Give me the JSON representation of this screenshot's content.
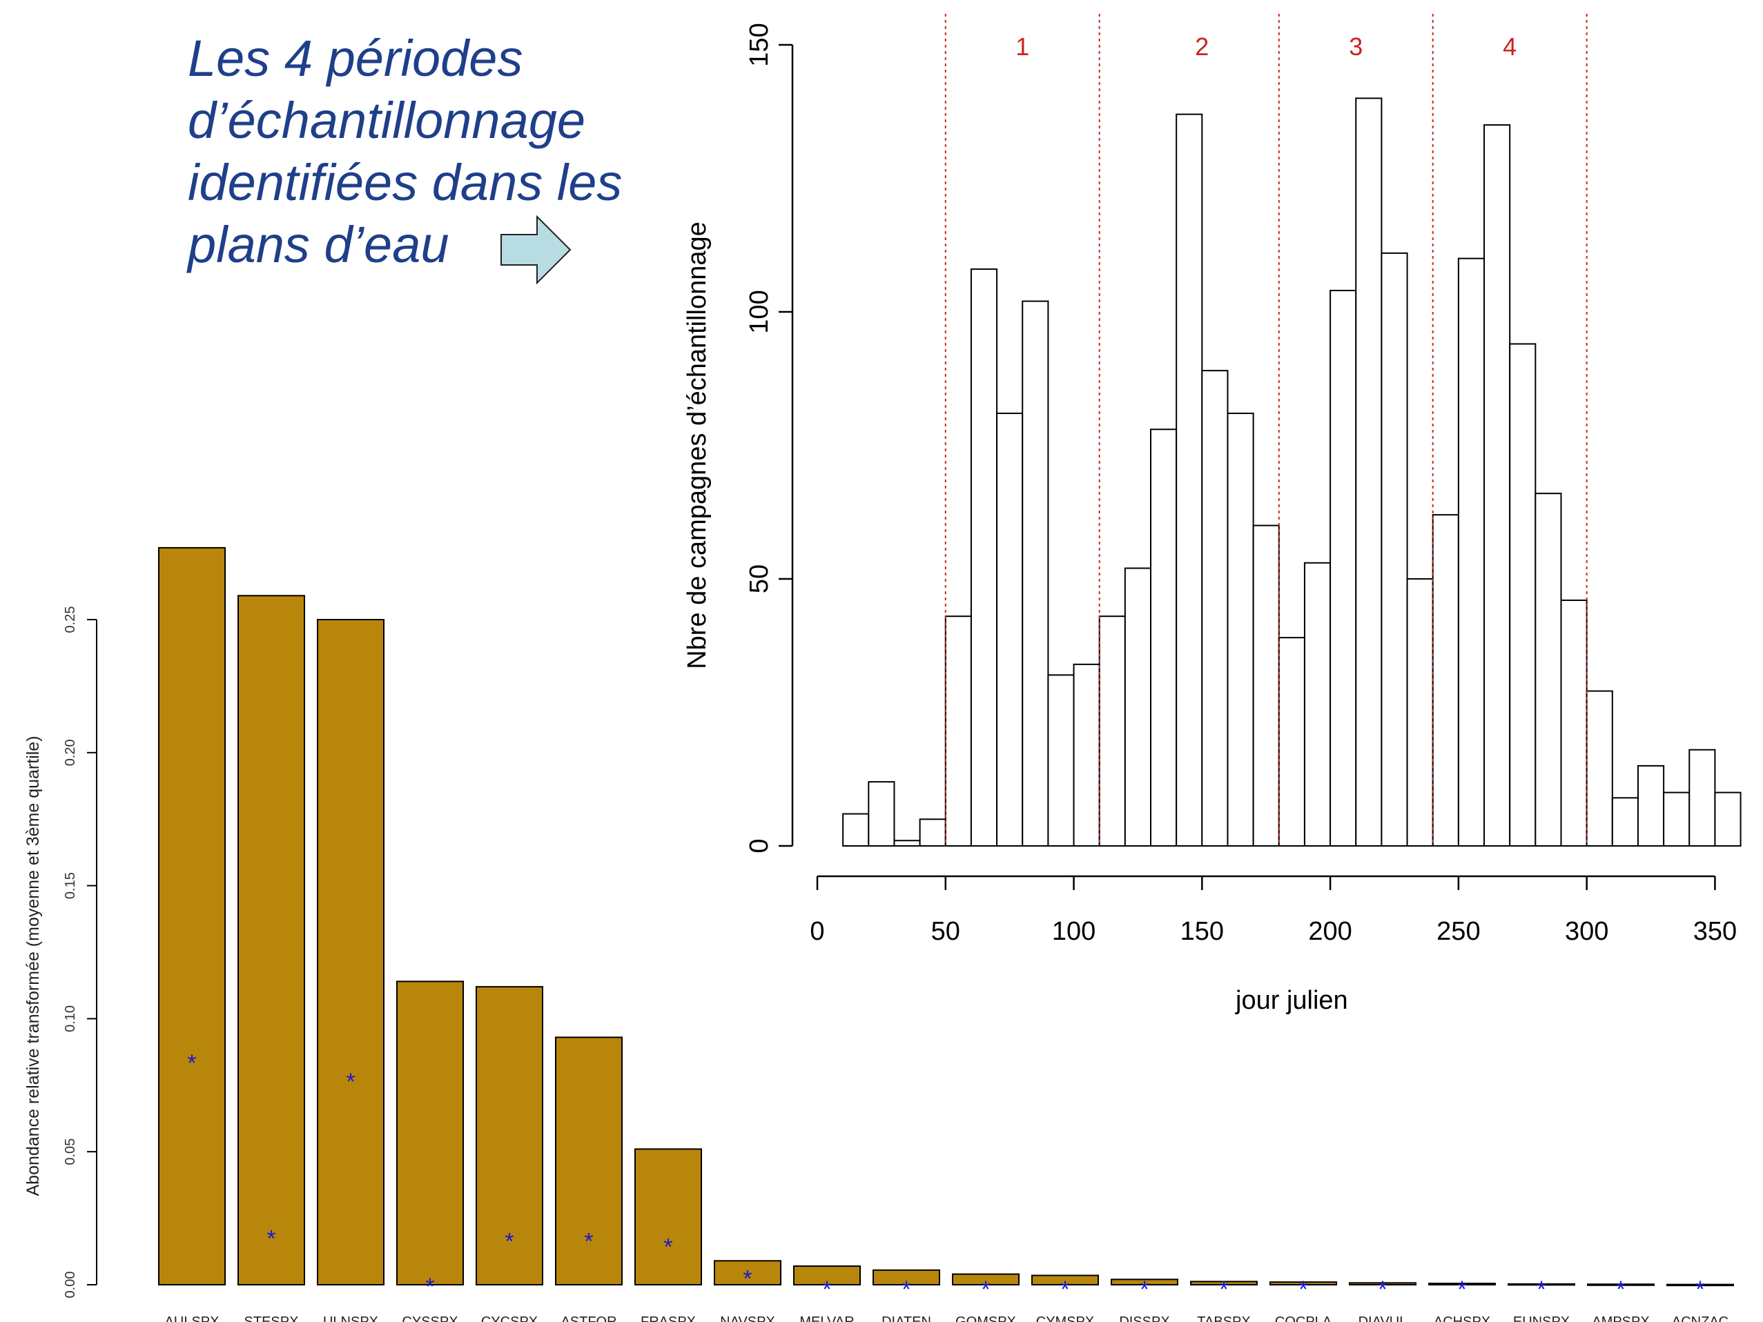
{
  "caption": {
    "lines": [
      "Les 4 périodes",
      "d’échantillonnage",
      "identifiées dans les",
      "plans d’eau"
    ]
  },
  "colors": {
    "bar_fill": "#b8860b",
    "star": "#1a1acd",
    "period_line": "#cc2222",
    "caption_text": "#1f3f8a",
    "arrow_fill": "#b7dde3"
  },
  "chart_data": [
    {
      "type": "bar",
      "title": "",
      "xlabel": "",
      "ylabel": "Abondance relative transformée (moyenne et 3ème quartile)",
      "ylim": [
        0,
        0.27
      ],
      "yticks": [
        "0.00",
        "0.05",
        "0.10",
        "0.15",
        "0.20",
        "0.25"
      ],
      "categories": [
        "AULSPX",
        "STESPX",
        "ULNSPX",
        "CYSSPX",
        "CYCSPX",
        "ASTFOR",
        "FRASPX",
        "NAVSPX",
        "MELVAR",
        "DIATEN",
        "GOMSPX",
        "CYMSPX",
        "DISSPX",
        "TABSPX",
        "COCPLA",
        "DIAVUL",
        "ACHSPX",
        "EUNSPX",
        "AMPSPX",
        "ACNZAC"
      ],
      "series": [
        {
          "values": [
            0.277,
            0.259,
            0.25,
            0.114,
            0.112,
            0.093,
            0.051,
            0.009,
            0.007,
            0.0055,
            0.004,
            0.0035,
            0.002,
            0.0012,
            0.001,
            0.0007,
            0.0005,
            0.0003,
            0.0002,
            0.0001
          ]
        },
        {
          "marker": "*",
          "values": [
            0.085,
            0.019,
            0.078,
            0.001,
            0.018,
            0.018,
            0.016,
            0.004,
            0.0,
            0.0,
            0.0,
            0.0,
            0.0,
            0.0,
            0.0,
            0.0,
            0.0,
            0.0,
            0.0,
            0.0
          ]
        }
      ],
      "grid": false
    },
    {
      "type": "bar",
      "subtype": "histogram",
      "title": "",
      "xlabel": "jour julien",
      "ylabel": "Nbre de campagnes d’échantillonnage",
      "xlim": [
        0,
        360
      ],
      "ylim": [
        0,
        150
      ],
      "xticks": [
        0,
        50,
        100,
        150,
        200,
        250,
        300,
        350
      ],
      "yticks": [
        0,
        50,
        100,
        150
      ],
      "bin_width": 10,
      "bins_start": 10,
      "counts": [
        6,
        12,
        1,
        5,
        43,
        108,
        81,
        102,
        32,
        34,
        43,
        52,
        78,
        137,
        89,
        81,
        60,
        39,
        53,
        104,
        140,
        111,
        50,
        62,
        110,
        135,
        94,
        66,
        46,
        29,
        9,
        15,
        10,
        18,
        10
      ],
      "period_boundaries": [
        50,
        110,
        180,
        240,
        300
      ],
      "period_labels": [
        {
          "label": "1",
          "x": 80
        },
        {
          "label": "2",
          "x": 150
        },
        {
          "label": "3",
          "x": 210
        },
        {
          "label": "4",
          "x": 270
        }
      ],
      "grid": false
    }
  ]
}
